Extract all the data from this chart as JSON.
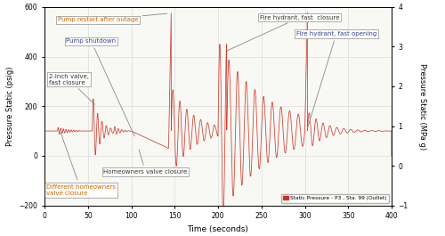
{
  "xlabel": "Time (seconds)",
  "ylabel_left": "Pressure Static (psig)",
  "ylabel_right": "Pressure Static (MPa g)",
  "xlim": [
    0,
    400
  ],
  "ylim_left": [
    -200,
    600
  ],
  "ylim_right": [
    -1,
    4
  ],
  "xticks": [
    0,
    50,
    100,
    150,
    200,
    250,
    300,
    350,
    400
  ],
  "yticks_left": [
    -200,
    0,
    200,
    400,
    600
  ],
  "yticks_right": [
    -1,
    0,
    1,
    2,
    3,
    4
  ],
  "line_color": "#cc3322",
  "bg_color": "#f8f8f5",
  "grid_color": "#cccccc",
  "legend_label": "Static Pressure - P3 , Sta. 99 (Outlet)"
}
